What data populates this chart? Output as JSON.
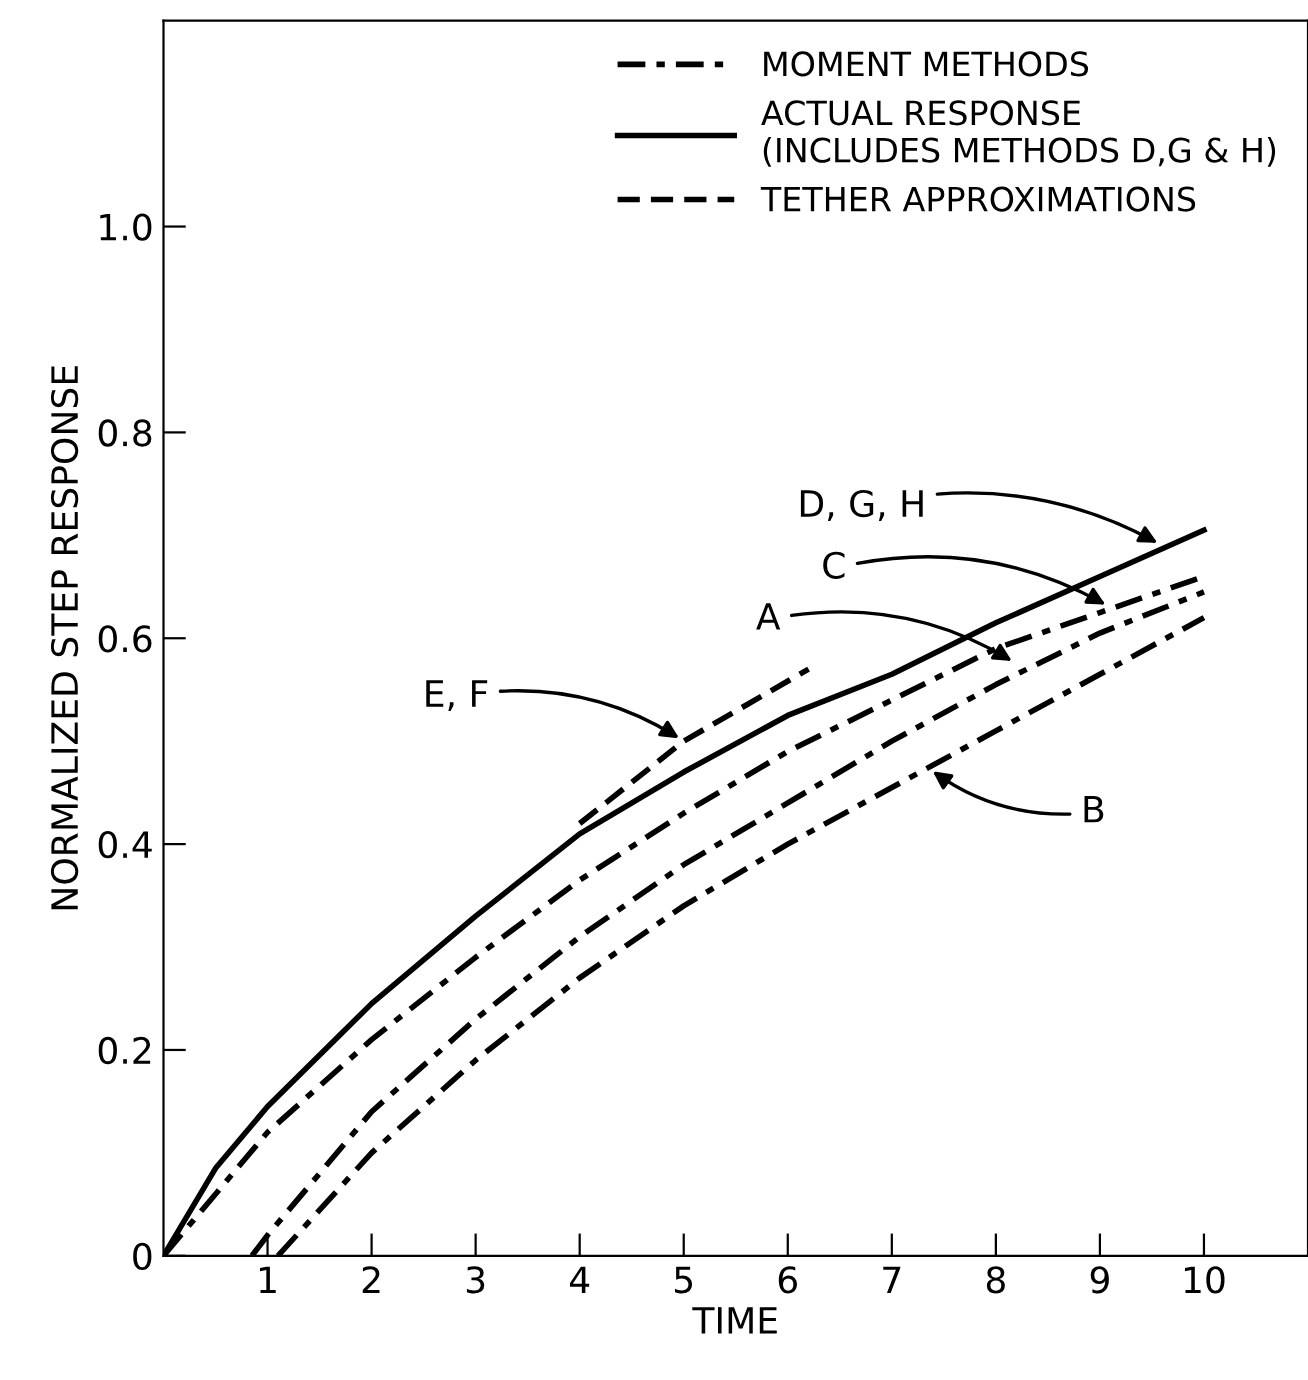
{
  "chart_data": {
    "type": "line",
    "xlabel": "TIME",
    "ylabel": "NORMALIZED STEP RESPONSE",
    "xlim": [
      0,
      11
    ],
    "ylim": [
      0,
      1.2
    ],
    "xticks": [
      1,
      2,
      3,
      4,
      5,
      6,
      7,
      8,
      9,
      10
    ],
    "yticks": [
      0,
      0.2,
      0.4,
      0.6,
      0.8,
      {
        "value": 1.0,
        "label": "1.0"
      }
    ],
    "grid": false,
    "legend": "top right",
    "marker": "none",
    "series": [
      {
        "name": "MOMENT METHODS",
        "color": "#000000",
        "line_style": "dashdot",
        "x": [
          0,
          1,
          2,
          3,
          4,
          5,
          6,
          7,
          8,
          9,
          10
        ],
        "values": [
          0,
          0.12,
          0.21,
          0.29,
          0.365,
          0.43,
          0.49,
          0.54,
          0.59,
          0.625,
          0.66
        ]
      },
      {
        "name": "ACTUAL RESPONSE\n(INCLUDES METHODS D,G & H)",
        "color": "#000000",
        "line_style": "solid",
        "x": [
          0,
          0.5,
          1,
          2,
          3,
          4,
          5,
          6,
          7,
          8,
          9,
          10
        ],
        "values": [
          0,
          0.085,
          0.145,
          0.245,
          0.33,
          0.41,
          0.47,
          0.525,
          0.565,
          0.615,
          0.66,
          0.705
        ]
      },
      {
        "name": "TETHER APPROXIMATIONS",
        "color": "#000000",
        "line_style": "dashed",
        "x": [
          4,
          5,
          6.2
        ],
        "values": [
          0.42,
          0.5,
          0.57
        ]
      },
      {
        "color": "#000000",
        "line_style": "dashdot",
        "x": [
          0.85,
          1,
          2,
          3,
          4,
          5,
          6,
          7,
          8,
          9,
          10
        ],
        "values": [
          0,
          0.02,
          0.14,
          0.23,
          0.31,
          0.38,
          0.44,
          0.5,
          0.555,
          0.605,
          0.645
        ]
      },
      {
        "color": "#000000",
        "line_style": "dashdot",
        "x": [
          1.1,
          2,
          3,
          4,
          5,
          6,
          7,
          8,
          9,
          10
        ],
        "values": [
          0,
          0.1,
          0.19,
          0.27,
          0.34,
          0.4,
          0.455,
          0.51,
          0.565,
          0.62
        ]
      }
    ],
    "annotations": [
      {
        "text": "D, G, H",
        "x": 9.6,
        "y": 0.69
      },
      {
        "text": "C",
        "x": 9.1,
        "y": 0.63
      },
      {
        "text": "A",
        "x": 8.2,
        "y": 0.575
      },
      {
        "text": "B",
        "x": 7.35,
        "y": 0.474
      },
      {
        "text": "E, F",
        "x": 5.0,
        "y": 0.5
      }
    ]
  }
}
